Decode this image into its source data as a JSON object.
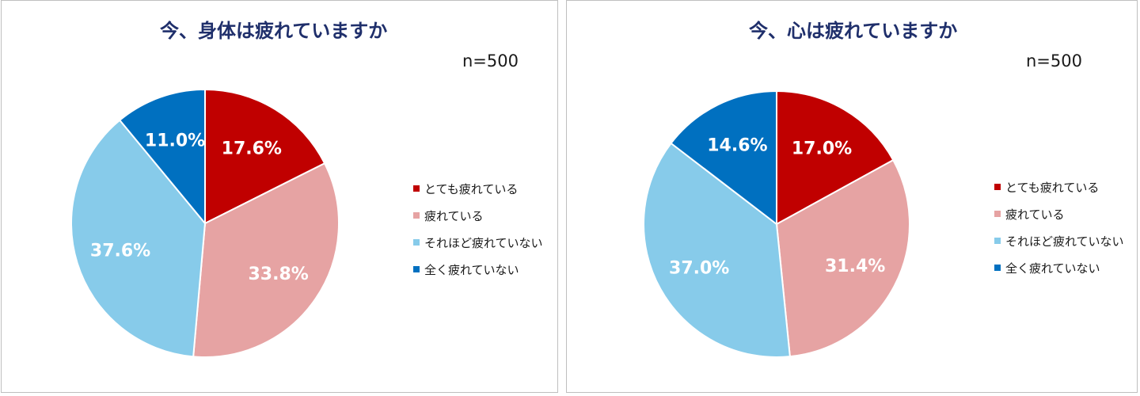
{
  "charts": [
    {
      "title": "今、身体は疲れていますか",
      "sample_size": "n=500"
    },
    {
      "title": "今、心は疲れていますか",
      "sample_size": "n=500"
    }
  ],
  "chart_data": [
    {
      "type": "pie",
      "title": "今、身体は疲れていますか",
      "annotation": "n=500",
      "categories": [
        "とても疲れている",
        "疲れている",
        "それほど疲れていない",
        "全く疲れていない"
      ],
      "values": [
        17.6,
        33.8,
        37.6,
        11.0
      ],
      "value_labels": [
        "17.6%",
        "33.8%",
        "37.6%",
        "11.0%"
      ],
      "colors": [
        "#c00000",
        "#e6a3a3",
        "#87cbea",
        "#0070c0"
      ],
      "label_colors": [
        "#ffffff",
        "#ffffff",
        "#ffffff",
        "#ffffff"
      ],
      "legend_position": "right"
    },
    {
      "type": "pie",
      "title": "今、心は疲れていますか",
      "annotation": "n=500",
      "categories": [
        "とても疲れている",
        "疲れている",
        "それほど疲れていない",
        "全く疲れていない"
      ],
      "values": [
        17.0,
        31.4,
        37.0,
        14.6
      ],
      "value_labels": [
        "17.0%",
        "31.4%",
        "37.0%",
        "14.6%"
      ],
      "colors": [
        "#c00000",
        "#e6a3a3",
        "#87cbea",
        "#0070c0"
      ],
      "label_colors": [
        "#ffffff",
        "#ffffff",
        "#ffffff",
        "#ffffff"
      ],
      "legend_position": "right"
    }
  ]
}
